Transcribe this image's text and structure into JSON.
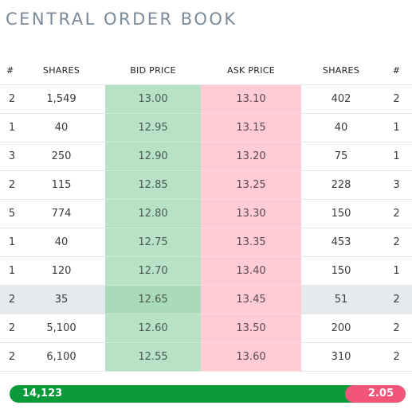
{
  "title": "CENTRAL ORDER BOOK",
  "columns": [
    "#",
    "SHARES",
    "BID PRICE",
    "ASK PRICE",
    "SHARES",
    "#"
  ],
  "rows": [
    {
      "bid_count": "2",
      "bid_shares": "1,549",
      "bid_price": "13.00",
      "ask_price": "13.10",
      "ask_shares": "402",
      "ask_count": "2"
    },
    {
      "bid_count": "1",
      "bid_shares": "40",
      "bid_price": "12.95",
      "ask_price": "13.15",
      "ask_shares": "40",
      "ask_count": "1"
    },
    {
      "bid_count": "3",
      "bid_shares": "250",
      "bid_price": "12.90",
      "ask_price": "13.20",
      "ask_shares": "75",
      "ask_count": "1"
    },
    {
      "bid_count": "2",
      "bid_shares": "115",
      "bid_price": "12.85",
      "ask_price": "13.25",
      "ask_shares": "228",
      "ask_count": "3"
    },
    {
      "bid_count": "5",
      "bid_shares": "774",
      "bid_price": "12.80",
      "ask_price": "13.30",
      "ask_shares": "150",
      "ask_count": "2"
    },
    {
      "bid_count": "1",
      "bid_shares": "40",
      "bid_price": "12.75",
      "ask_price": "13.35",
      "ask_shares": "453",
      "ask_count": "2"
    },
    {
      "bid_count": "1",
      "bid_shares": "120",
      "bid_price": "12.70",
      "ask_price": "13.40",
      "ask_shares": "150",
      "ask_count": "1"
    },
    {
      "bid_count": "2",
      "bid_shares": "35",
      "bid_price": "12.65",
      "ask_price": "13.45",
      "ask_shares": "51",
      "ask_count": "2",
      "highlight": true
    },
    {
      "bid_count": "2",
      "bid_shares": "5,100",
      "bid_price": "12.60",
      "ask_price": "13.50",
      "ask_shares": "200",
      "ask_count": "2"
    },
    {
      "bid_count": "2",
      "bid_shares": "6,100",
      "bid_price": "12.55",
      "ask_price": "13.60",
      "ask_shares": "310",
      "ask_count": "2"
    }
  ],
  "summary": {
    "bid_total": "14,123",
    "ask_value": "2.05"
  },
  "colors": {
    "bid_bg": "#b8e2c6",
    "ask_bg": "#ffccd5",
    "bid_bar": "#0a9a3a",
    "ask_bar": "#f2557a",
    "title": "#7a8a99"
  }
}
